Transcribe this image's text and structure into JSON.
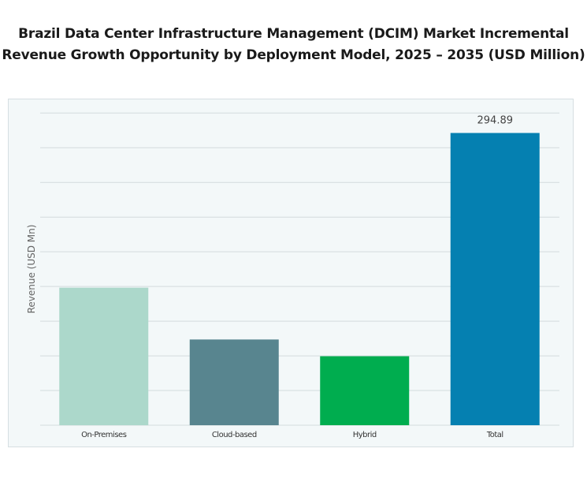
{
  "chart_data": {
    "type": "bar",
    "title": "Brazil Data Center Infrastructure Management (DCIM) Market Incremental Revenue Growth Opportunity by Deployment Model, 2025 – 2035 (USD Million)",
    "xlabel": "",
    "ylabel": "Revenue (USD Mn)",
    "categories": [
      "On-Premises",
      "Cloud-based",
      "Hybrid",
      "Total"
    ],
    "values": [
      138.8,
      86.5,
      69.6,
      294.89
    ],
    "data_labels": [
      "",
      "",
      "",
      "294.89"
    ],
    "colors": [
      "#acd8cb",
      "#58858f",
      "#00ad4f",
      "#0580b1"
    ],
    "ylim": [
      0,
      315
    ],
    "grid": true,
    "gridline_interval": 35,
    "y_tick_labels_shown": false,
    "legend": "none"
  }
}
